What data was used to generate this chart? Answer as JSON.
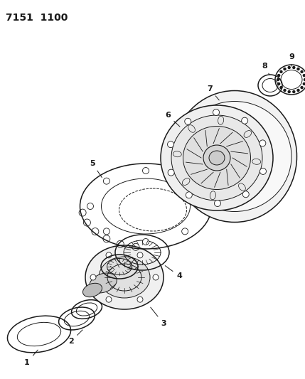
{
  "title_text": "7151  1100",
  "title_fontsize": 10,
  "title_fontweight": "bold",
  "bg_color": "#ffffff",
  "line_color": "#1a1a1a",
  "fig_width": 4.29,
  "fig_height": 5.33,
  "dpi": 100
}
